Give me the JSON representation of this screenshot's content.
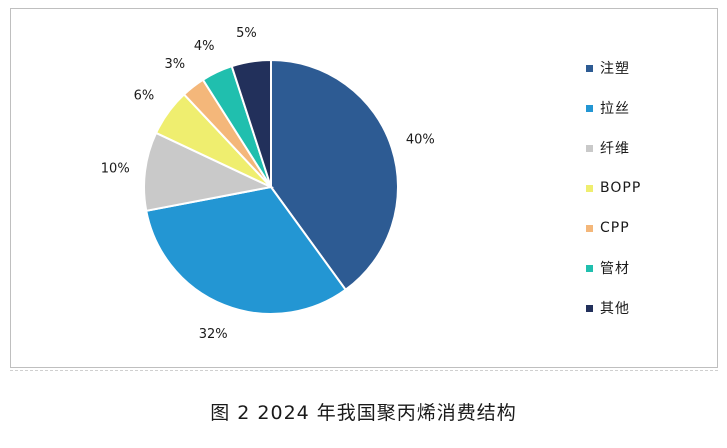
{
  "chart_data": {
    "type": "pie",
    "categories": [
      "注塑",
      "拉丝",
      "纤维",
      "BOPP",
      "CPP",
      "管材",
      "其他"
    ],
    "values": [
      40,
      32,
      10,
      6,
      3,
      4,
      5
    ],
    "value_labels": [
      "40%",
      "32%",
      "10%",
      "6%",
      "3%",
      "4%",
      "5%"
    ],
    "colors": [
      "#2d5b93",
      "#2396d3",
      "#c9c9c9",
      "#efee6f",
      "#f4b77a",
      "#20bfae",
      "#22305b"
    ],
    "legend_position": "right"
  },
  "caption": "图 2  2024 年我国聚丙烯消费结构"
}
